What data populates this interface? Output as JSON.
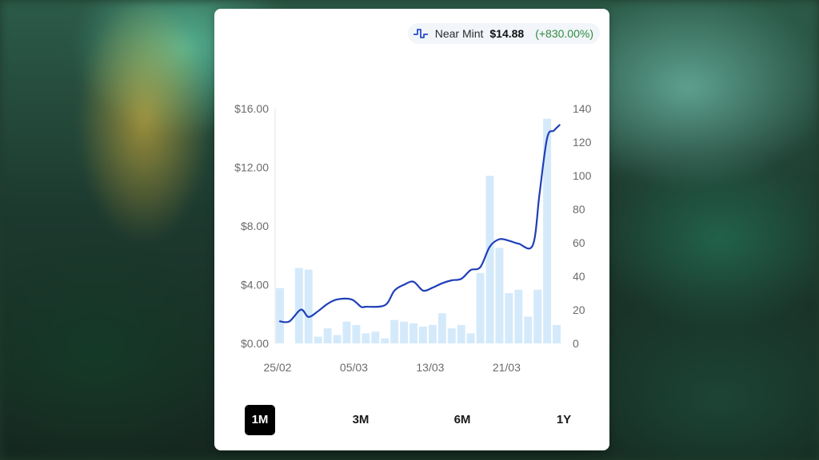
{
  "card": {
    "condition_label": "Near Mint",
    "price": "$14.88",
    "change": "(+830.00%)",
    "icon": "pulse-icon",
    "change_color": "#2e8b3e"
  },
  "time_ranges": [
    {
      "label": "1M",
      "active": true
    },
    {
      "label": "3M",
      "active": false
    },
    {
      "label": "6M",
      "active": false
    },
    {
      "label": "1Y",
      "active": false
    }
  ],
  "chart_data": {
    "type": "line",
    "title": "",
    "x_tick_labels": [
      "25/02",
      "05/03",
      "13/03",
      "21/03"
    ],
    "y_left": {
      "ticks": [
        "$0.00",
        "$4.00",
        "$8.00",
        "$12.00",
        "$16.00"
      ],
      "range": [
        0,
        16
      ]
    },
    "y_right": {
      "ticks": [
        "0",
        "20",
        "40",
        "60",
        "80",
        "100",
        "120",
        "140"
      ],
      "range": [
        0,
        140
      ]
    },
    "line_color": "#1f3fb8",
    "bar_color": "#d4eafb",
    "days": 30,
    "price_series": {
      "axis": "left",
      "x": [
        0,
        1,
        2.2,
        3,
        4,
        5,
        6,
        7.5,
        8.5,
        9,
        11,
        12,
        13,
        14,
        15,
        16,
        17,
        18,
        19,
        20,
        21,
        22,
        23,
        24,
        25,
        26.5,
        27.2,
        28,
        28.7,
        29.3
      ],
      "values": [
        1.5,
        1.5,
        2.3,
        1.8,
        2.2,
        2.7,
        3.0,
        3.0,
        2.5,
        2.5,
        2.6,
        3.6,
        4.0,
        4.2,
        3.6,
        3.8,
        4.1,
        4.3,
        4.4,
        5.0,
        5.2,
        6.6,
        7.1,
        7.0,
        6.8,
        6.7,
        10.2,
        14.0,
        14.5,
        14.88
      ]
    },
    "volume_series": {
      "axis": "right",
      "values": [
        33,
        0,
        45,
        44,
        4,
        9,
        5,
        13,
        11,
        6,
        7,
        3,
        14,
        13,
        12,
        10,
        11,
        18,
        9,
        11,
        6,
        42,
        100,
        57,
        30,
        32,
        16,
        32,
        134,
        11
      ]
    }
  }
}
